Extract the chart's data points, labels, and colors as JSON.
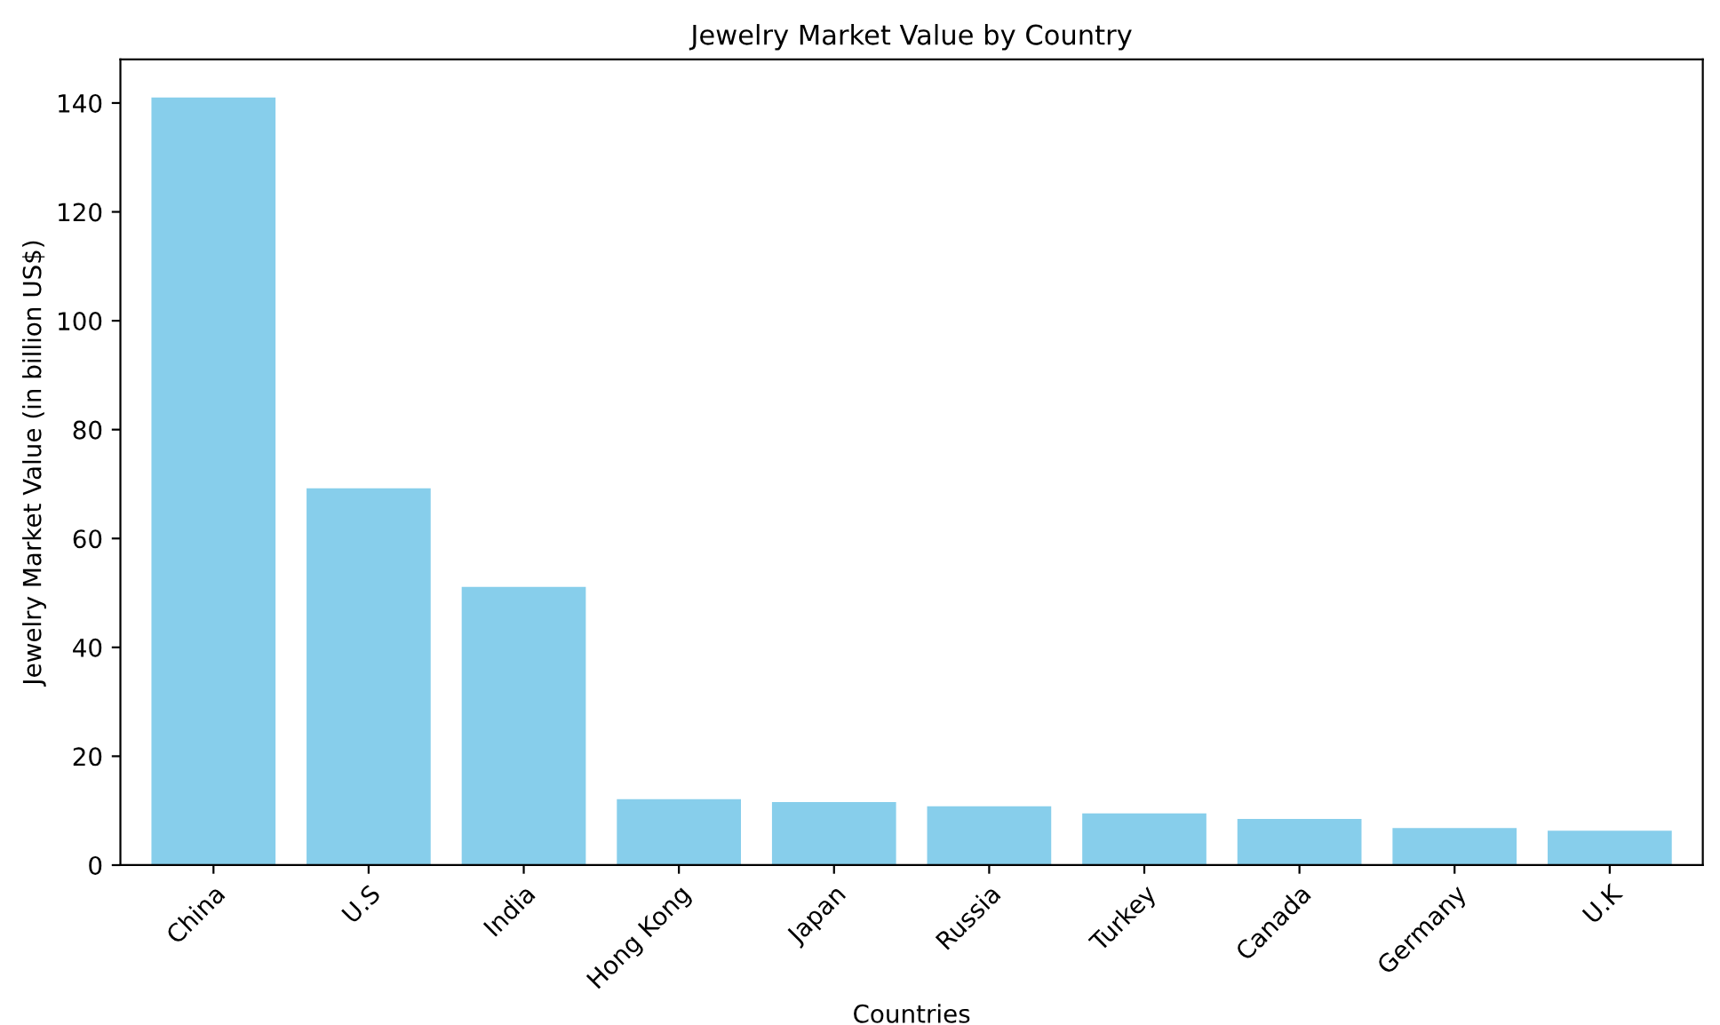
{
  "chart_data": {
    "type": "bar",
    "title": "Jewelry Market Value by Country",
    "xlabel": "Countries",
    "ylabel": "Jewelry Market Value (in billion US$)",
    "categories": [
      "China",
      "U.S",
      "India",
      "Hong Kong",
      "Japan",
      "Russia",
      "Turkey",
      "Canada",
      "Germany",
      "U.K"
    ],
    "values": [
      141,
      69.2,
      51.1,
      12.1,
      11.6,
      10.8,
      9.5,
      8.5,
      6.8,
      6.3
    ],
    "color": "#87ceeb",
    "ylim": [
      0,
      148
    ],
    "yticks": [
      0,
      20,
      40,
      60,
      80,
      100,
      120,
      140
    ],
    "grid": false
  }
}
